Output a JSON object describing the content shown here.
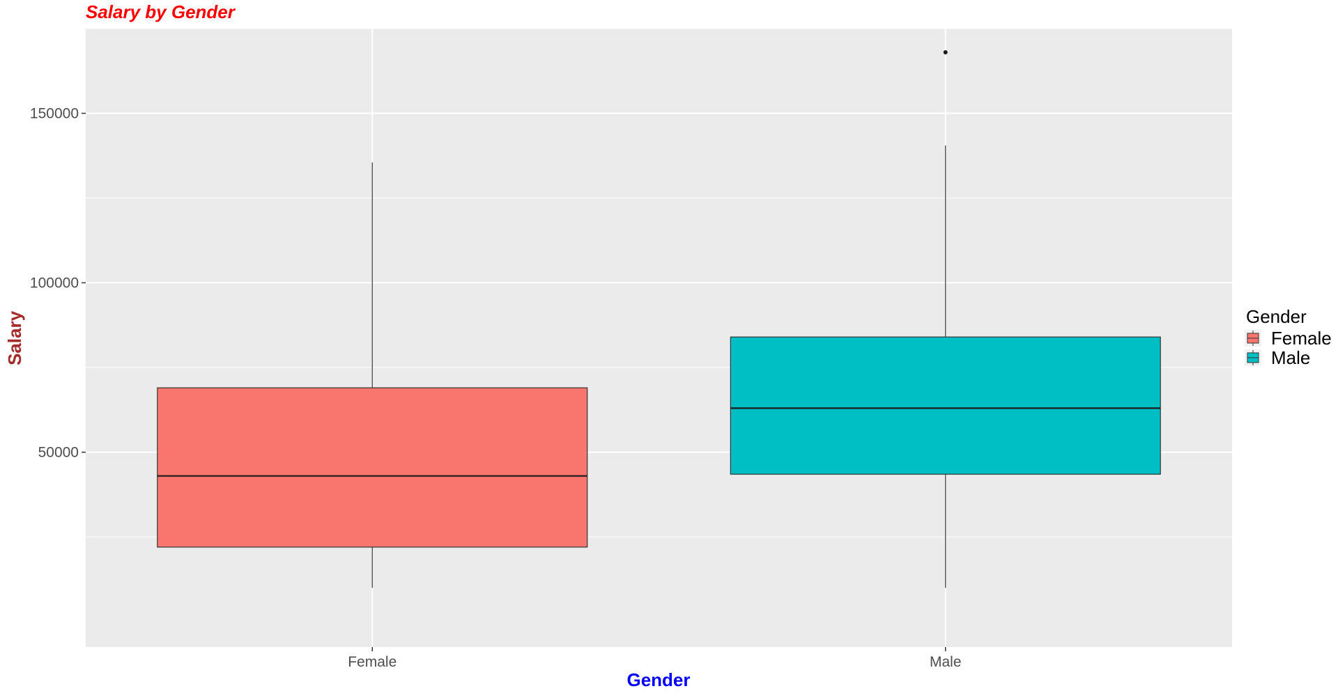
{
  "chart_data": {
    "type": "box",
    "title": "Salary by Gender",
    "xlabel": "Gender",
    "ylabel": "Salary",
    "ylim": [
      -7500,
      175000
    ],
    "yticks": [
      50000,
      100000,
      150000
    ],
    "ytick_labels": [
      "50000",
      "100000",
      "150000"
    ],
    "grid": true,
    "legend": {
      "title": "Gender",
      "position": "right",
      "entries": [
        "Female",
        "Male"
      ]
    },
    "categories": [
      "Female",
      "Male"
    ],
    "series": [
      {
        "name": "Female",
        "color": "#f8766d",
        "min": 10000,
        "q1": 22000,
        "median": 43000,
        "q3": 69000,
        "max": 135500,
        "outliers": []
      },
      {
        "name": "Male",
        "color": "#00bfc4",
        "min": 10000,
        "q1": 43500,
        "median": 63000,
        "q3": 84000,
        "max": 140500,
        "outliers": [
          168000
        ]
      }
    ]
  }
}
